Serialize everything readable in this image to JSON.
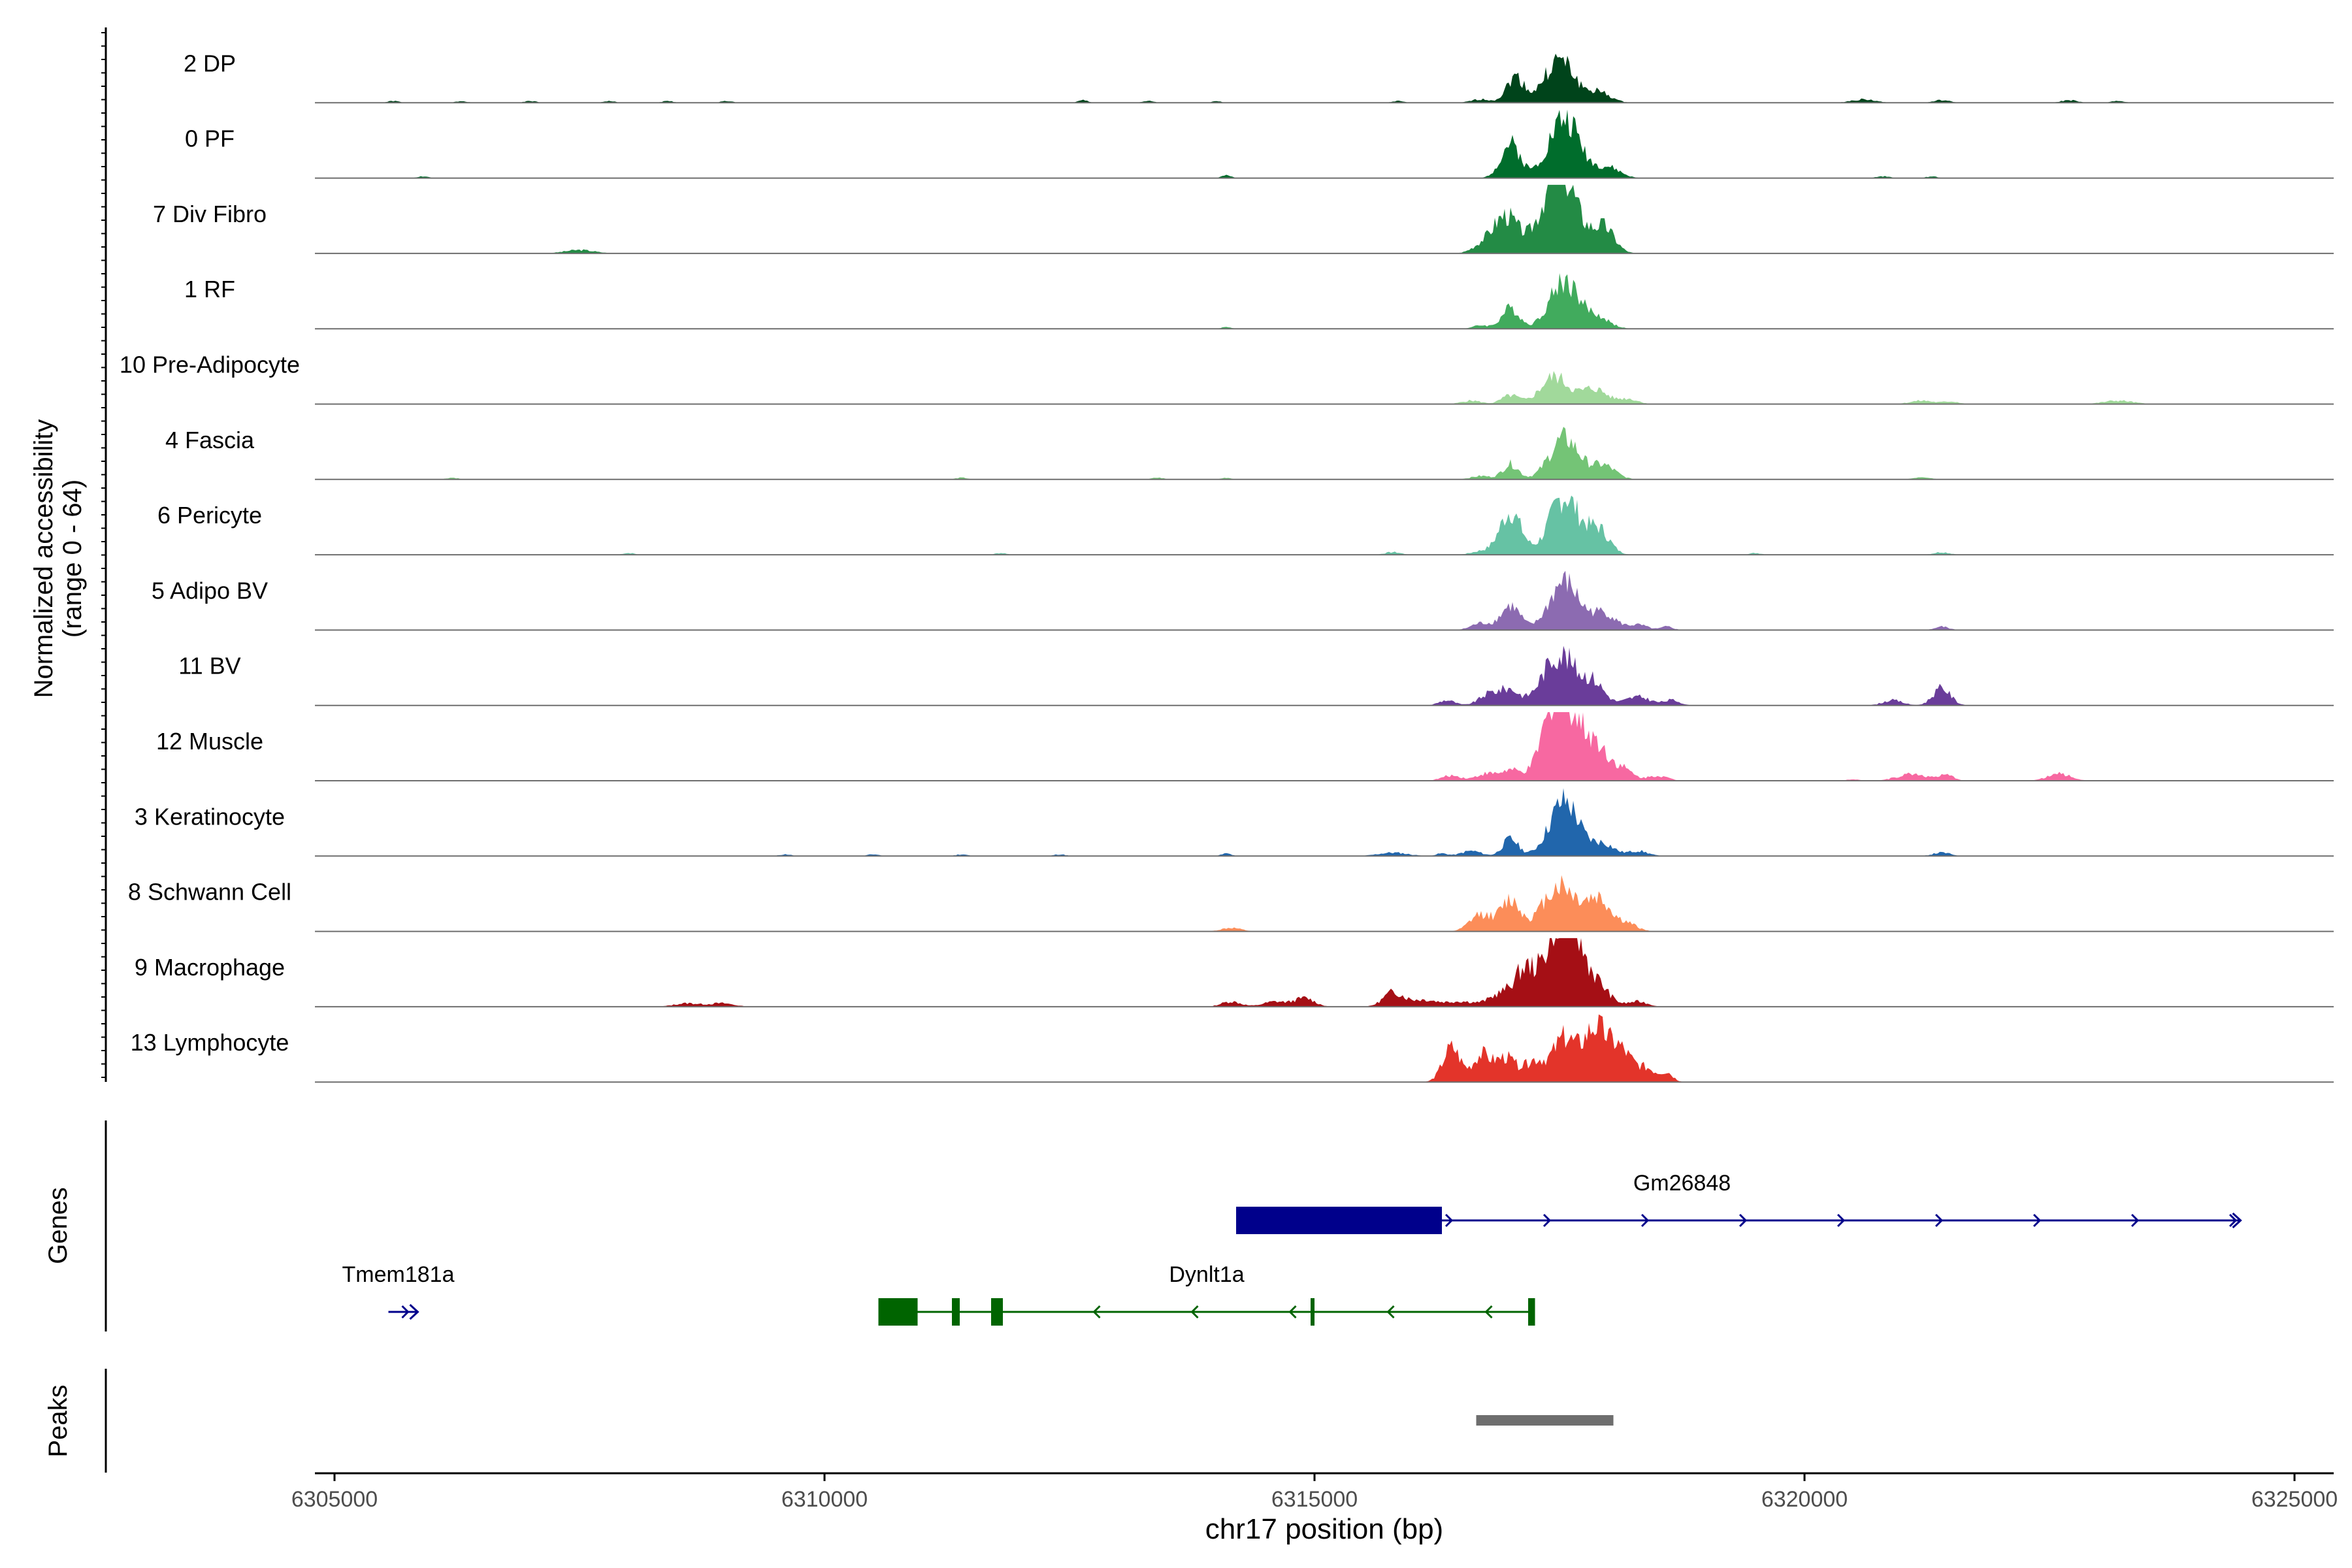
{
  "chart_data": {
    "type": "area",
    "title": "",
    "xlabel": "chr17 position (bp)",
    "ylabel": "Normalized accessibility",
    "ylabel_range": "(range 0 - 64)",
    "x_range": [
      6304800,
      6325400
    ],
    "y_range": [
      0,
      64
    ],
    "x_ticks": [
      6305000,
      6310000,
      6315000,
      6320000,
      6325000
    ],
    "x_tick_labels": [
      "6305000",
      "6310000",
      "6315000",
      "6320000",
      "6325000"
    ],
    "tracks": [
      {
        "name": "2 DP",
        "color": "#00441b",
        "peaks": [
          [
            6312640,
            1.5,
            50
          ],
          [
            6313300,
            1,
            60
          ],
          [
            6314000,
            1,
            40
          ],
          [
            6315850,
            1,
            60
          ],
          [
            6316700,
            2,
            100
          ],
          [
            6317050,
            15,
            90
          ],
          [
            6317500,
            25,
            150
          ],
          [
            6317900,
            6,
            120
          ],
          [
            6320600,
            2,
            120
          ],
          [
            6321400,
            1.5,
            80
          ],
          [
            6322700,
            1.5,
            80
          ],
          [
            6323200,
            1,
            70
          ],
          [
            6305600,
            1,
            60
          ],
          [
            6306300,
            1,
            60
          ],
          [
            6307000,
            1,
            60
          ],
          [
            6307800,
            1,
            60
          ],
          [
            6308400,
            1,
            60
          ],
          [
            6309000,
            1,
            60
          ]
        ]
      },
      {
        "name": "0 PF",
        "color": "#006d2c",
        "peaks": [
          [
            6305900,
            1,
            60
          ],
          [
            6314100,
            1.5,
            50
          ],
          [
            6317000,
            20,
            100
          ],
          [
            6317550,
            35,
            160
          ],
          [
            6318000,
            6,
            120
          ],
          [
            6320800,
            1,
            70
          ],
          [
            6321300,
            1,
            60
          ]
        ]
      },
      {
        "name": "7 Div Fibro",
        "color": "#238b45",
        "peaks": [
          [
            6307500,
            2,
            150
          ],
          [
            6316950,
            22,
            130
          ],
          [
            6317500,
            50,
            170
          ],
          [
            6317950,
            15,
            110
          ],
          [
            6316700,
            4,
            100
          ]
        ]
      },
      {
        "name": "1 RF",
        "color": "#41ab5d",
        "peaks": [
          [
            6314100,
            1,
            50
          ],
          [
            6317000,
            12,
            90
          ],
          [
            6317550,
            28,
            150
          ],
          [
            6317900,
            6,
            120
          ],
          [
            6316700,
            2,
            80
          ]
        ]
      },
      {
        "name": "10 Pre-Adipocyte",
        "color": "#a1d99b",
        "peaks": [
          [
            6316600,
            2,
            100
          ],
          [
            6317000,
            5,
            90
          ],
          [
            6317450,
            16,
            140
          ],
          [
            6317850,
            9,
            130
          ],
          [
            6318200,
            3,
            100
          ],
          [
            6321200,
            2,
            120
          ],
          [
            6321500,
            1.5,
            80
          ],
          [
            6323200,
            2,
            150
          ]
        ]
      },
      {
        "name": "4 Fascia",
        "color": "#74c476",
        "peaks": [
          [
            6306200,
            1,
            60
          ],
          [
            6311400,
            1,
            60
          ],
          [
            6313400,
            1,
            60
          ],
          [
            6314100,
            1,
            50
          ],
          [
            6316700,
            2,
            100
          ],
          [
            6317000,
            9,
            80
          ],
          [
            6317550,
            24,
            150
          ],
          [
            6317950,
            8,
            120
          ],
          [
            6321200,
            1.5,
            80
          ]
        ]
      },
      {
        "name": "6 Pericyte",
        "color": "#66c2a4",
        "peaks": [
          [
            6308000,
            1,
            60
          ],
          [
            6311800,
            1,
            60
          ],
          [
            6315800,
            1.5,
            80
          ],
          [
            6317000,
            25,
            110
          ],
          [
            6317550,
            34,
            150
          ],
          [
            6317900,
            14,
            110
          ],
          [
            6316700,
            2,
            100
          ],
          [
            6319500,
            1,
            60
          ],
          [
            6321400,
            1.5,
            80
          ]
        ]
      },
      {
        "name": "5 Adipo BV",
        "color": "#8c6bb1",
        "peaks": [
          [
            6316700,
            4,
            100
          ],
          [
            6317000,
            14,
            100
          ],
          [
            6317550,
            28,
            150
          ],
          [
            6317950,
            10,
            120
          ],
          [
            6318300,
            3,
            100
          ],
          [
            6318600,
            2,
            60
          ],
          [
            6321400,
            2,
            70
          ]
        ]
      },
      {
        "name": "11 BV",
        "color": "#6a3d9a",
        "peaks": [
          [
            6316350,
            3,
            80
          ],
          [
            6316800,
            7,
            110
          ],
          [
            6317000,
            8,
            90
          ],
          [
            6317500,
            30,
            170
          ],
          [
            6317850,
            12,
            110
          ],
          [
            6318300,
            5,
            130
          ],
          [
            6318650,
            3,
            80
          ],
          [
            6320900,
            3,
            100
          ],
          [
            6321400,
            10,
            90
          ]
        ]
      },
      {
        "name": "12 Muscle",
        "color": "#f768a1",
        "peaks": [
          [
            6316400,
            3,
            100
          ],
          [
            6316750,
            4,
            100
          ],
          [
            6317000,
            6,
            100
          ],
          [
            6317500,
            55,
            150
          ],
          [
            6317850,
            22,
            140
          ],
          [
            6318150,
            6,
            100
          ],
          [
            6318500,
            3,
            100
          ],
          [
            6321100,
            4,
            150
          ],
          [
            6321450,
            3,
            80
          ],
          [
            6322600,
            4,
            120
          ],
          [
            6320500,
            1,
            60
          ]
        ]
      },
      {
        "name": "3 Keratinocyte",
        "color": "#2166ac",
        "peaks": [
          [
            6309600,
            1,
            60
          ],
          [
            6310500,
            1,
            60
          ],
          [
            6311400,
            1,
            60
          ],
          [
            6312400,
            1,
            60
          ],
          [
            6314100,
            1.5,
            50
          ],
          [
            6315800,
            2,
            150
          ],
          [
            6316600,
            3,
            100
          ],
          [
            6317000,
            10,
            80
          ],
          [
            6317550,
            32,
            150
          ],
          [
            6317950,
            7,
            110
          ],
          [
            6318300,
            3,
            100
          ],
          [
            6321400,
            2,
            90
          ],
          [
            6316300,
            1.5,
            60
          ]
        ]
      },
      {
        "name": "8 Schwann Cell",
        "color": "#fc8d59",
        "peaks": [
          [
            6314150,
            2,
            100
          ],
          [
            6316700,
            10,
            110
          ],
          [
            6317000,
            18,
            100
          ],
          [
            6317500,
            27,
            170
          ],
          [
            6317900,
            18,
            130
          ],
          [
            6318200,
            4,
            100
          ]
        ]
      },
      {
        "name": "9 Macrophage",
        "color": "#a50f15",
        "peaks": [
          [
            6308600,
            2,
            130
          ],
          [
            6308950,
            2,
            120
          ],
          [
            6314150,
            3,
            100
          ],
          [
            6314600,
            3,
            120
          ],
          [
            6314900,
            5,
            100
          ],
          [
            6315800,
            8,
            100
          ],
          [
            6316100,
            4,
            150
          ],
          [
            6316500,
            3,
            150
          ],
          [
            6316900,
            7,
            120
          ],
          [
            6317150,
            20,
            110
          ],
          [
            6317550,
            60,
            160
          ],
          [
            6317900,
            10,
            120
          ],
          [
            6318300,
            3,
            100
          ]
        ]
      },
      {
        "name": "13 Lymphocyte",
        "color": "#e3342a",
        "peaks": [
          [
            6316400,
            20,
            90
          ],
          [
            6316700,
            15,
            90
          ],
          [
            6316950,
            14,
            110
          ],
          [
            6317250,
            12,
            100
          ],
          [
            6317550,
            25,
            120
          ],
          [
            6317850,
            28,
            110
          ],
          [
            6318100,
            20,
            130
          ],
          [
            6318400,
            7,
            100
          ],
          [
            6318600,
            5,
            60
          ]
        ]
      }
    ],
    "genes": [
      {
        "name": "Gm26848",
        "color": "#00008b",
        "strand": "+",
        "start": 6314200,
        "end": 6324450,
        "exons": [
          [
            6314200,
            6316300
          ]
        ],
        "row": 0,
        "label_x": 6318750
      },
      {
        "name": "Dynlt1a",
        "color": "#006400",
        "strand": "-",
        "start": 6310550,
        "end": 6317250,
        "exons": [
          [
            6310550,
            6310950
          ],
          [
            6311300,
            6311380
          ],
          [
            6311700,
            6311820
          ],
          [
            6314960,
            6315000
          ],
          [
            6317180,
            6317250
          ]
        ],
        "row": 1,
        "label_x": 6313900
      },
      {
        "name": "Tmem181a",
        "color": "#00008b",
        "strand": "+",
        "start": 6305550,
        "end": 6305850,
        "exons": [],
        "row": 1,
        "label_x": 6305650
      }
    ],
    "peaks_track": [
      [
        6316650,
        6318050
      ]
    ],
    "panel_labels": {
      "genes": "Genes",
      "peaks": "Peaks"
    }
  }
}
